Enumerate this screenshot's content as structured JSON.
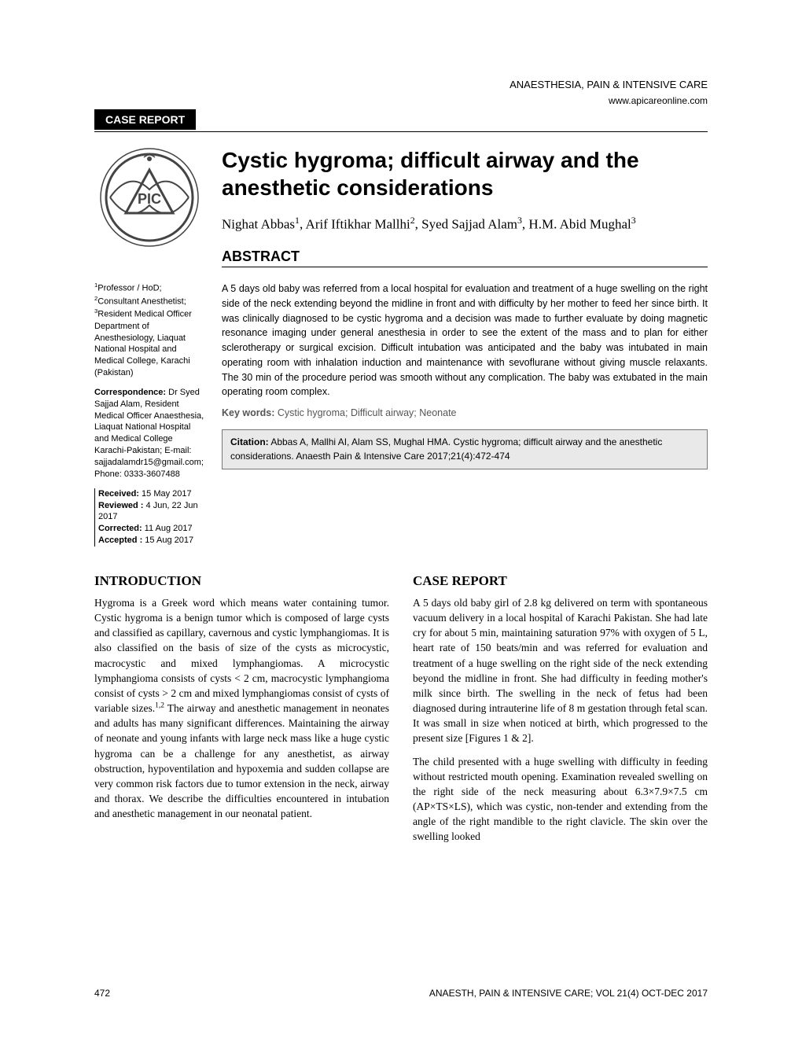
{
  "header": {
    "journal_name": "ANAESTHESIA, PAIN & INTENSIVE CARE",
    "url": "www.apicareonline.com",
    "section_label": "CASE REPORT"
  },
  "title": "Cystic hygroma; difficult airway and the anesthetic considerations",
  "authors_html": "Nighat Abbas<sup>1</sup>, Arif Iftikhar Mallhi<sup>2</sup>, Syed Sajjad Alam<sup>3</sup>, H.M. Abid Mughal<sup>3</sup>",
  "abstract": {
    "heading": "ABSTRACT",
    "text": "A 5 days old baby was referred from a local hospital for evaluation and treatment of a huge swelling on the right side of the neck extending beyond the midline in front and with difficulty by her mother to feed her since birth. It was clinically diagnosed to be cystic hygroma and a decision was made to further evaluate by doing magnetic resonance imaging under general anesthesia in order to see the extent of the mass and to plan for either sclerotherapy or surgical excision. Difficult intubation was anticipated and the baby was intubated in main operating room with inhalation induction and maintenance with sevoflurane without giving muscle relaxants. The 30 min of the procedure period was smooth without any complication. The baby was extubated in the main operating room complex.",
    "keywords_label": "Key words:",
    "keywords": " Cystic hygroma; Difficult airway; Neonate"
  },
  "sidebar": {
    "affiliations_html": "<sup>1</sup>Professor / HoD; <sup>2</sup>Consultant Anesthetist; <sup>3</sup>Resident Medical Officer<br>Department of Anesthesiology, Liaquat National Hospital and Medical College, Karachi (Pakistan)",
    "correspondence_html": "<b>Correspondence:</b> Dr Syed Sajjad Alam, Resident Medical Officer Anaesthesia, Liaquat National Hospital and Medical College Karachi-Pakistan; E-mail: sajjadalamdr15@gmail.com; Phone: 0333-3607488",
    "dates_html": "<b>Received:</b> 15 May 2017<br><b>Reviewed :</b> 4 Jun, 22 Jun 2017<br><b>Corrected:</b>  11 Aug 2017<br><b>Accepted :</b> 15 Aug  2017"
  },
  "citation": {
    "label": "Citation:",
    "text": " Abbas A, Mallhi AI, Alam SS, Mughal HMA. Cystic hygroma; difficult airway and the anesthetic considerations. Anaesth Pain & Intensive Care 2017;21(4):472-474"
  },
  "body": {
    "left": {
      "heading": "INTRODUCTION",
      "p1_html": "Hygroma is a Greek word which means water containing tumor. Cystic hygroma is a benign tumor which is composed of large cysts and classified as capillary, cavernous and cystic lymphangiomas. It is also classified on the basis of size of the cysts as microcystic, macrocystic and mixed lymphangiomas. A microcystic lymphangioma consists of cysts < 2 cm, macrocystic lymphangioma consist of cysts > 2 cm and mixed lymphangiomas consist of cysts of variable sizes.<sup>1,2</sup> The airway and anesthetic management in neonates and adults has many significant differences. Maintaining the airway of neonate and young infants with large neck mass like a huge cystic hygroma can be a challenge for any anesthetist, as airway obstruction, hypoventilation and hypoxemia and sudden collapse are very common risk factors due to tumor extension in the neck, airway and thorax. We describe the difficulties encountered in intubation and anesthetic management in our neonatal patient."
    },
    "right": {
      "heading": "CASE REPORT",
      "p1": "A 5 days old baby girl of 2.8 kg delivered on term with spontaneous vacuum delivery in a local hospital of Karachi Pakistan. She had late cry for about 5 min, maintaining saturation 97% with oxygen of 5 L, heart rate of 150 beats/min and was referred for evaluation and treatment of a huge swelling on the right side of the neck extending beyond the midline in front. She had difficulty in feeding mother's milk since birth. The swelling in the neck of fetus had been diagnosed during intrauterine life of 8 m gestation through fetal scan. It was small in size when noticed at birth, which progressed to the present size [Figures 1 & 2].",
      "p2": "The child presented with a huge swelling with difficulty in feeding without restricted mouth opening. Examination revealed swelling on the right side of the neck measuring about 6.3×7.9×7.5 cm (AP×TS×LS), which was cystic, non-tender and extending from the angle of the right mandible to the right clavicle. The skin over the swelling looked"
    }
  },
  "footer": {
    "page": "472",
    "running": "ANAESTH, PAIN & INTENSIVE CARE; VOL 21(4) OCT-DEC 2017"
  },
  "logo": {
    "stroke": "#444444",
    "fill": "#eeeeee",
    "size": 130
  },
  "colors": {
    "text": "#000000",
    "muted": "#555555",
    "box_bg": "#e9e9e9",
    "box_border": "#777777",
    "label_bg": "#000000",
    "label_fg": "#ffffff"
  },
  "typography": {
    "title_fontsize": 28,
    "authors_fontsize": 17,
    "abstract_heading_fontsize": 18,
    "abstract_body_fontsize": 12.5,
    "sidebar_fontsize": 11,
    "body_heading_fontsize": 17,
    "body_fontsize": 13.5,
    "footer_fontsize": 12
  }
}
